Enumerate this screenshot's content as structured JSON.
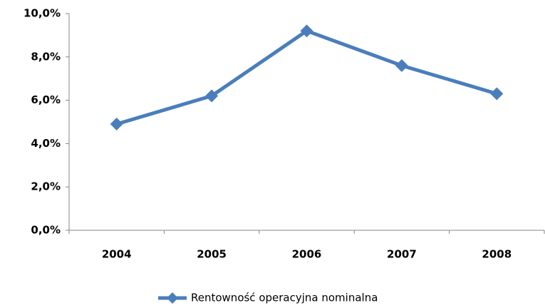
{
  "chart_data": {
    "type": "line",
    "categories": [
      "2004",
      "2005",
      "2006",
      "2007",
      "2008"
    ],
    "series": [
      {
        "name": "Rentowność operacyjna nominalna",
        "color": "#4a7ebb",
        "values": [
          4.9,
          6.2,
          9.2,
          7.6,
          6.3
        ]
      }
    ],
    "ylim": [
      0,
      10
    ],
    "yticks": [
      {
        "value": 0,
        "label": "0,0%"
      },
      {
        "value": 2,
        "label": "2,0%"
      },
      {
        "value": 4,
        "label": "4,0%"
      },
      {
        "value": 6,
        "label": "6,0%"
      },
      {
        "value": 8,
        "label": "8,0%"
      },
      {
        "value": 10,
        "label": "10,0%"
      }
    ],
    "grid": false,
    "legend": "bottom"
  }
}
